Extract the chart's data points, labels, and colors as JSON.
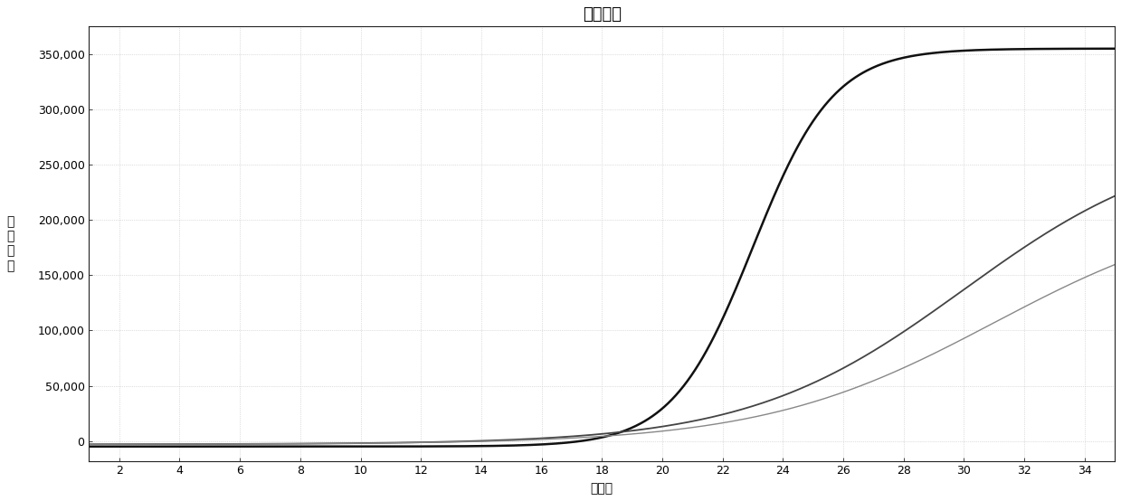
{
  "title": "扩增曲线",
  "xlabel": "循环数",
  "ylabel": "荧\n光\n信\n号",
  "xlim": [
    1,
    35
  ],
  "ylim": [
    -18000,
    375000
  ],
  "xticks": [
    2,
    4,
    6,
    8,
    10,
    12,
    14,
    16,
    18,
    20,
    22,
    24,
    26,
    28,
    30,
    32,
    34
  ],
  "yticks": [
    0,
    50000,
    100000,
    150000,
    200000,
    250000,
    300000,
    350000
  ],
  "ytick_labels": [
    "0",
    "50,000",
    "100,000",
    "150,000",
    "200,000",
    "250,000",
    "300,000",
    "350,000"
  ],
  "background_color": "#ffffff",
  "grid_color": "#bbbbbb",
  "curve1_color": "#111111",
  "curve2_color": "#444444",
  "curve3_color": "#888888",
  "title_fontsize": 13,
  "label_fontsize": 10,
  "tick_fontsize": 9,
  "curve1_lw": 1.8,
  "curve2_lw": 1.3,
  "curve3_lw": 1.0
}
